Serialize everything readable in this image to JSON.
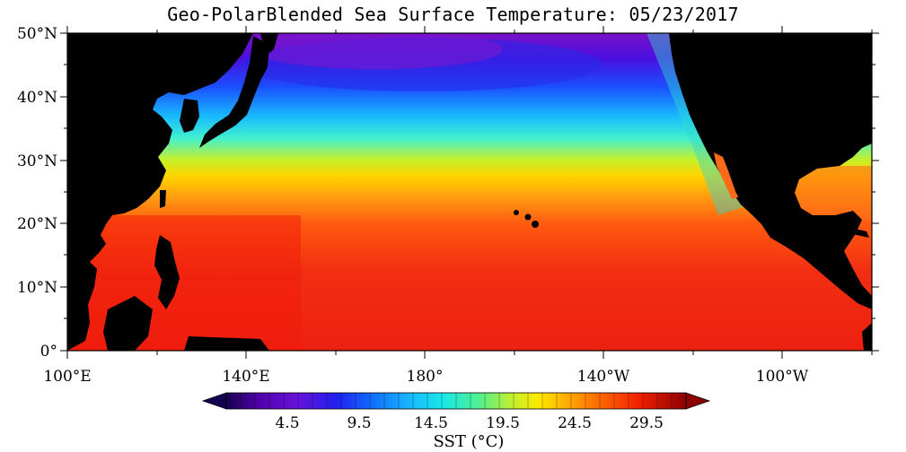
{
  "title": "Geo-PolarBlended Sea Surface Temperature: 05/23/2017",
  "axes": {
    "lat_labels": [
      "50°N",
      "40°N",
      "30°N",
      "20°N",
      "10°N",
      "0°"
    ],
    "lon_labels": [
      "100°E",
      "140°E",
      "180°",
      "140°W",
      "100°W"
    ]
  },
  "colorbar": {
    "tick_labels": [
      "4.5",
      "9.5",
      "14.5",
      "19.5",
      "24.5",
      "29.5"
    ],
    "title": "SST (°C)",
    "min": 0,
    "max": 32,
    "colors": [
      "#140050",
      "#3a0098",
      "#6b00c0",
      "#3010e0",
      "#1040ff",
      "#1a8fff",
      "#10d0f0",
      "#20f0c0",
      "#70f070",
      "#d8f020",
      "#ffd800",
      "#ff9a00",
      "#ff5a00",
      "#f42000",
      "#d40000",
      "#900000"
    ]
  },
  "map": {
    "region": "North Pacific Ocean",
    "sst_bands": [
      {
        "lat": 50,
        "temp_c": 4.5
      },
      {
        "lat": 45,
        "temp_c": 7
      },
      {
        "lat": 40,
        "temp_c": 11
      },
      {
        "lat": 35,
        "temp_c": 16
      },
      {
        "lat": 30,
        "temp_c": 20
      },
      {
        "lat": 25,
        "temp_c": 24
      },
      {
        "lat": 20,
        "temp_c": 27
      },
      {
        "lat": 10,
        "temp_c": 29
      },
      {
        "lat": 0,
        "temp_c": 29.5
      }
    ]
  }
}
